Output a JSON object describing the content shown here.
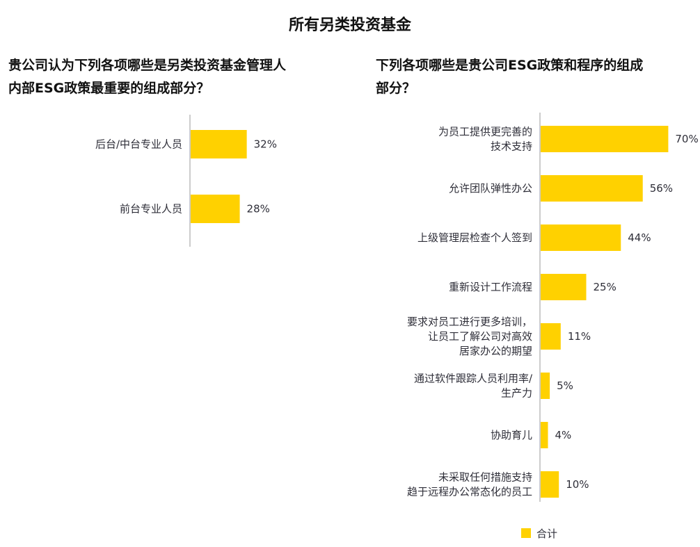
{
  "page": {
    "title": "所有另类投资基金"
  },
  "colors": {
    "bar": "#FFD100",
    "axis": "#999999",
    "label_text": "#2e2e38",
    "value_text": "#2e2e38"
  },
  "legend": {
    "label": "合计",
    "placement": "bottom-right"
  },
  "chart_data": [
    {
      "type": "bar",
      "orientation": "horizontal",
      "title": "贵公司认为下列各项哪些是另类投资基金管理人\n内部ESG政策最重要的组成部分？",
      "categories": [
        "后台/中台专业人员",
        "前台专业人员"
      ],
      "series": [
        {
          "name": "合计",
          "values": [
            32,
            28
          ]
        }
      ],
      "value_labels": [
        "32%",
        "28%"
      ],
      "unit": "%",
      "xlim": [
        0,
        100
      ],
      "grid": false
    },
    {
      "type": "bar",
      "orientation": "horizontal",
      "title": "下列各项哪些是贵公司ESG政策和程序的组成\n部分？",
      "categories": [
        "为员工提供更完善的\n技术支持",
        "允许团队弹性办公",
        "上级管理层检查个人签到",
        "重新设计工作流程",
        "要求对员工进行更多培训，\n让员工了解公司对高效\n居家办公的期望",
        "通过软件跟踪人员利用率/\n生产力",
        "协助育儿",
        "未采取任何措施支持\n趋于远程办公常态化的员工"
      ],
      "series": [
        {
          "name": "合计",
          "values": [
            70,
            56,
            44,
            25,
            11,
            5,
            4,
            10
          ]
        }
      ],
      "value_labels": [
        "70%",
        "56%",
        "44%",
        "25%",
        "11%",
        "5%",
        "4%",
        "10%"
      ],
      "unit": "%",
      "xlim": [
        0,
        100
      ],
      "grid": false
    }
  ]
}
